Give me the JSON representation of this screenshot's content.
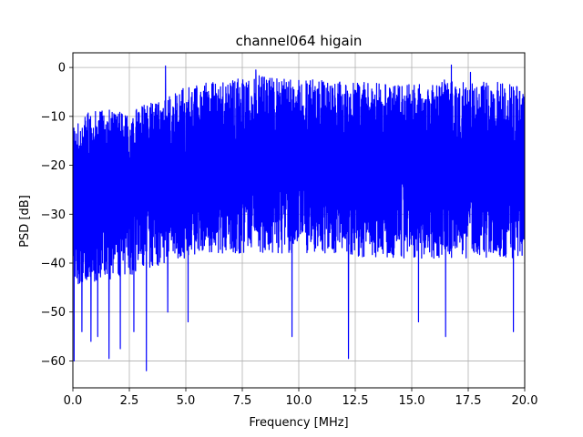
{
  "chart_data": {
    "type": "line",
    "title": "channel064 higain",
    "xlabel": "Frequency [MHz]",
    "ylabel": "PSD [dB]",
    "xlim": [
      0,
      20
    ],
    "ylim": [
      -65.5,
      3
    ],
    "x_ticks": [
      0,
      2.5,
      5,
      7.5,
      10,
      12.5,
      15,
      17.5,
      20
    ],
    "x_tick_labels": [
      "0.0",
      "2.5",
      "5.0",
      "7.5",
      "10.0",
      "12.5",
      "15.0",
      "17.5",
      "20.0"
    ],
    "y_ticks": [
      0,
      -10,
      -20,
      -30,
      -40,
      -50,
      -60
    ],
    "y_tick_labels": [
      "0",
      "−10",
      "−20",
      "−30",
      "−40",
      "−50",
      "−60"
    ],
    "grid": true,
    "line_color": "#0000ff",
    "series": [
      {
        "x": [
          0,
          1,
          2,
          3,
          4,
          5,
          6,
          7,
          8,
          9,
          10,
          11,
          12,
          13,
          14,
          15,
          16,
          17,
          18,
          19,
          20
        ],
        "upper_envelope_db": [
          -12,
          -8,
          -9,
          -8,
          -6,
          -4,
          -3,
          -2.5,
          -1.5,
          -2,
          -2,
          -2.5,
          -3,
          -3,
          -3.5,
          -3.5,
          -3,
          -2,
          -3,
          -3,
          -4
        ],
        "median_db": [
          -27,
          -25,
          -23,
          -22,
          -21,
          -20,
          -19.5,
          -19,
          -19,
          -19,
          -19.5,
          -19.5,
          -20,
          -20,
          -20.5,
          -20.5,
          -20,
          -20,
          -20.5,
          -21,
          -21
        ],
        "lower_envelope_db": [
          -45,
          -44,
          -43,
          -42,
          -40,
          -39,
          -38,
          -38,
          -38,
          -38,
          -38,
          -38,
          -38,
          -39,
          -39,
          -39,
          -39,
          -39,
          -39,
          -39,
          -40
        ],
        "dips": [
          {
            "x": 0.05,
            "y": -60
          },
          {
            "x": 0.4,
            "y": -54
          },
          {
            "x": 0.8,
            "y": -56
          },
          {
            "x": 1.1,
            "y": -55
          },
          {
            "x": 1.6,
            "y": -59.5
          },
          {
            "x": 2.1,
            "y": -57.5
          },
          {
            "x": 2.7,
            "y": -54
          },
          {
            "x": 3.25,
            "y": -62
          },
          {
            "x": 4.2,
            "y": -50
          },
          {
            "x": 5.1,
            "y": -52
          },
          {
            "x": 9.7,
            "y": -55
          },
          {
            "x": 12.2,
            "y": -59.5
          },
          {
            "x": 15.3,
            "y": -52
          },
          {
            "x": 16.5,
            "y": -55
          },
          {
            "x": 17.6,
            "y": -54
          },
          {
            "x": 19.5,
            "y": -54
          }
        ],
        "peaks": [
          {
            "x": 4.1,
            "y": 0.3
          },
          {
            "x": 8.1,
            "y": -0.5
          },
          {
            "x": 16.75,
            "y": 0.5
          },
          {
            "x": 17.6,
            "y": -1
          }
        ]
      }
    ]
  }
}
